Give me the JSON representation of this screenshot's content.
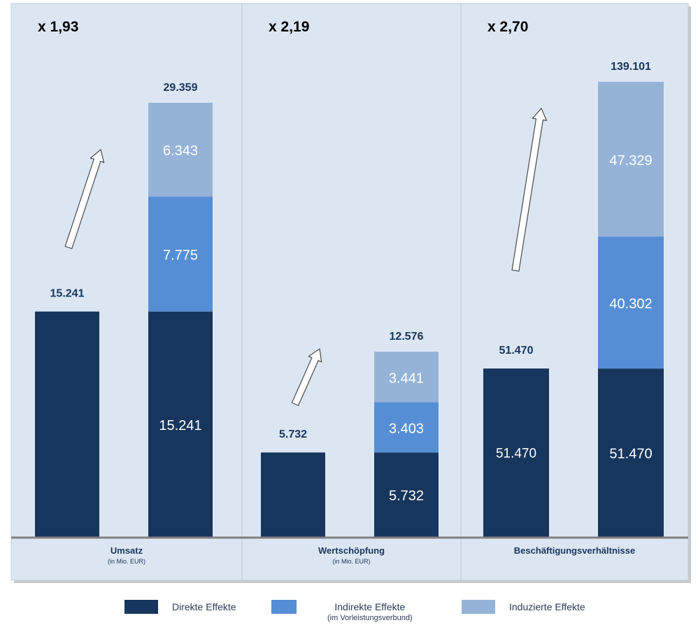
{
  "chart_data": {
    "type": "bar",
    "panels": [
      {
        "multiplier": "x 1,93",
        "category": "Umsatz",
        "unit": "(in Mio. EUR)",
        "direct_total": 15241,
        "direct_total_label": "15.241",
        "stacked_total": 29359,
        "stacked_total_label": "29.359",
        "segments": [
          {
            "series": "Direkte Effekte",
            "value": 15241,
            "label": "15.241"
          },
          {
            "series": "Indirekte Effekte",
            "value": 7775,
            "label": "7.775"
          },
          {
            "series": "Induzierte Effekte",
            "value": 6343,
            "label": "6.343"
          }
        ]
      },
      {
        "multiplier": "x 2,19",
        "category": "Wertschöpfung",
        "unit": "(in Mio. EUR)",
        "direct_total": 5732,
        "direct_total_label": "5.732",
        "stacked_total": 12576,
        "stacked_total_label": "12.576",
        "segments": [
          {
            "series": "Direkte Effekte",
            "value": 5732,
            "label": "5.732"
          },
          {
            "series": "Indirekte Effekte",
            "value": 3403,
            "label": "3.403"
          },
          {
            "series": "Induzierte Effekte",
            "value": 3441,
            "label": "3.441"
          }
        ]
      },
      {
        "multiplier": "x 2,70",
        "category": "Beschäftigungsverhältnisse",
        "unit": "",
        "direct_total": 51470,
        "direct_total_label": "51.470",
        "direct_inner_label": "51.470",
        "stacked_total": 139101,
        "stacked_total_label": "139.101",
        "segments": [
          {
            "series": "Direkte Effekte",
            "value": 51470,
            "label": "51.470"
          },
          {
            "series": "Indirekte Effekte",
            "value": 40302,
            "label": "40.302"
          },
          {
            "series": "Induzierte Effekte",
            "value": 47329,
            "label": "47.329"
          }
        ]
      }
    ],
    "legend": [
      {
        "name": "Direkte Effekte",
        "sub": "",
        "color": "#17365d"
      },
      {
        "name": "Indirekte Effekte",
        "sub": "(im Vorleistungsverbund)",
        "color": "#558ed5"
      },
      {
        "name": "Induzierte Effekte",
        "sub": "",
        "color": "#95b3d7"
      }
    ],
    "legend_placement": "bottom",
    "grid": false
  },
  "colors": {
    "panel_background": "#dce6f2",
    "baseline": "#7f7f7f",
    "total_label": "#17365d",
    "segment_label": "#ffffff"
  }
}
